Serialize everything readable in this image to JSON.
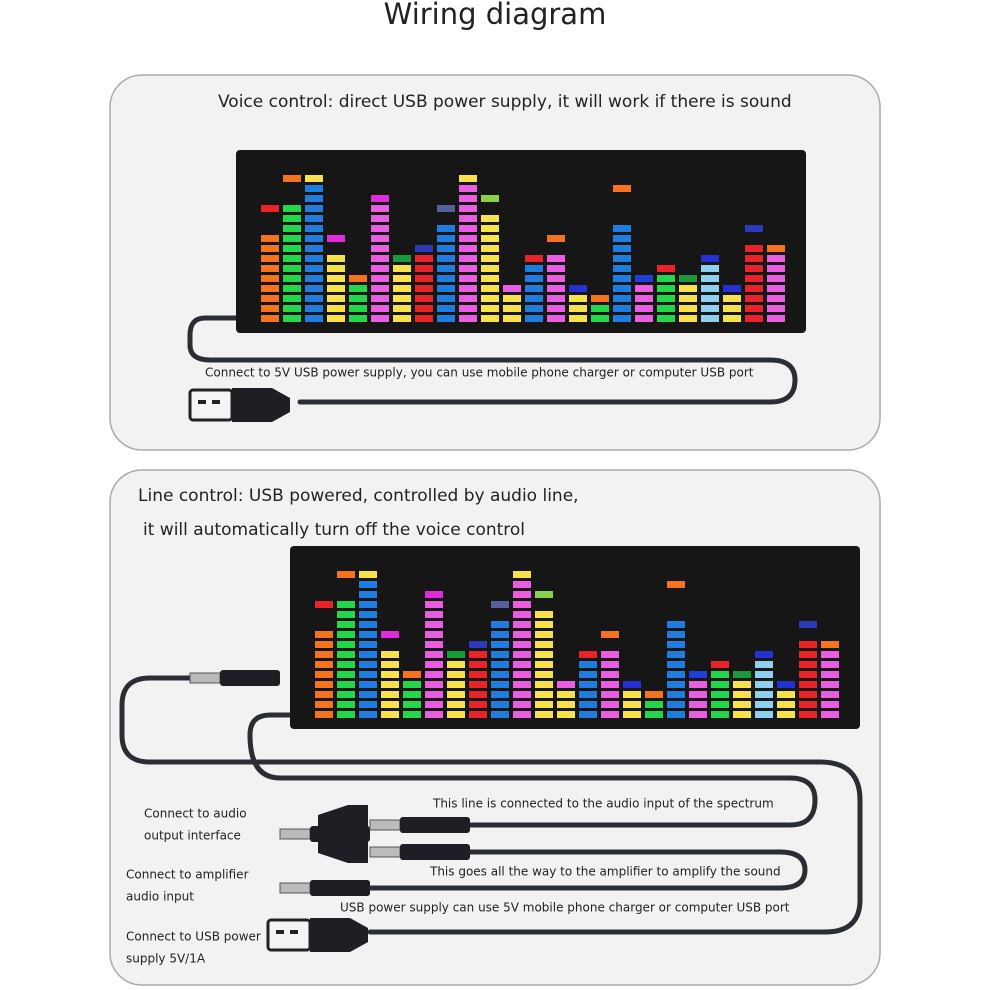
{
  "title": "Wiring diagram",
  "voice_panel": {
    "heading": "Voice control: direct USB power supply, it will work if there is sound",
    "cable_note": "Connect to 5V USB power supply, you can use mobile phone charger or computer USB port"
  },
  "line_panel": {
    "heading": [
      "Line control: USB powered, controlled by audio line,",
      "it will automatically turn off the voice control"
    ],
    "left_labels": [
      [
        "Connect to audio",
        "output interface"
      ],
      [
        "Connect to amplifier",
        "audio input"
      ],
      [
        "Connect to USB power",
        "supply 5V/1A"
      ]
    ],
    "cable_notes": [
      "This line is connected to the audio input of the spectrum",
      "This goes all the way to the amplifier to amplify the sound",
      "USB power supply can use 5V mobile phone charger or computer USB port"
    ]
  }
}
